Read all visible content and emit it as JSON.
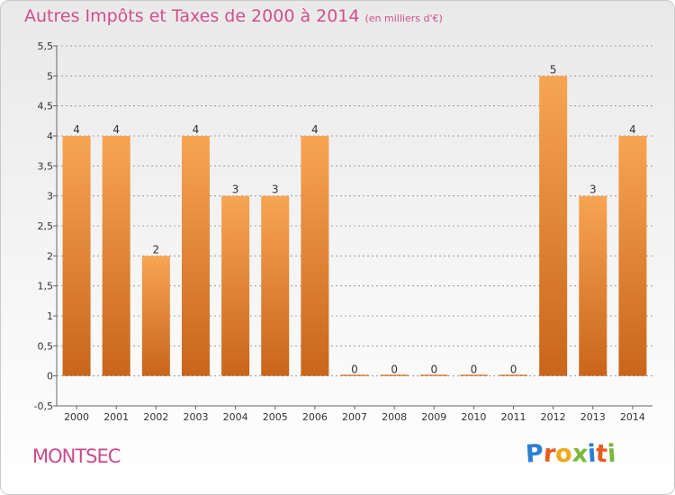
{
  "title": "Autres Impôts et Taxes de 2000 à 2014",
  "subtitle": "(en milliers d'€)",
  "place": "MONTSEC",
  "logo": {
    "letters": [
      {
        "ch": "P",
        "color": "#2a7fd3"
      },
      {
        "ch": "r",
        "color": "#e85a1e"
      },
      {
        "ch": "o",
        "color": "#f0a81a"
      },
      {
        "ch": "x",
        "color": "#7ab83a"
      },
      {
        "ch": "i",
        "color": "#2a7fd3"
      },
      {
        "ch": "t",
        "color": "#e85a1e"
      },
      {
        "ch": "i",
        "color": "#7ab83a"
      }
    ]
  },
  "colors": {
    "title": "#d0508a",
    "bar_top": "#f7a553",
    "bar_bottom": "#c9651a",
    "grid": "#8c8c8c"
  },
  "chart_data": {
    "type": "bar",
    "categories": [
      "2000",
      "2001",
      "2002",
      "2003",
      "2004",
      "2005",
      "2006",
      "2007",
      "2008",
      "2009",
      "2010",
      "2011",
      "2012",
      "2013",
      "2014"
    ],
    "values": [
      4,
      4,
      2,
      4,
      3,
      3,
      4,
      0,
      0,
      0,
      0,
      0,
      5,
      3,
      4
    ],
    "data_labels": [
      "4",
      "4",
      "2",
      "4",
      "3",
      "3",
      "4",
      "0",
      "0",
      "0",
      "0",
      "0",
      "5",
      "3",
      "4"
    ],
    "ylim": [
      -0.5,
      5.5
    ],
    "yticks": [
      -0.5,
      0,
      0.5,
      1,
      1.5,
      2,
      2.5,
      3,
      3.5,
      4,
      4.5,
      5,
      5.5
    ],
    "ytick_labels": [
      "-0,5",
      "0",
      "0,5",
      "1",
      "1,5",
      "2",
      "2,5",
      "3",
      "3,5",
      "4",
      "4,5",
      "5",
      "5,5"
    ],
    "grid": "horizontal dashed"
  }
}
